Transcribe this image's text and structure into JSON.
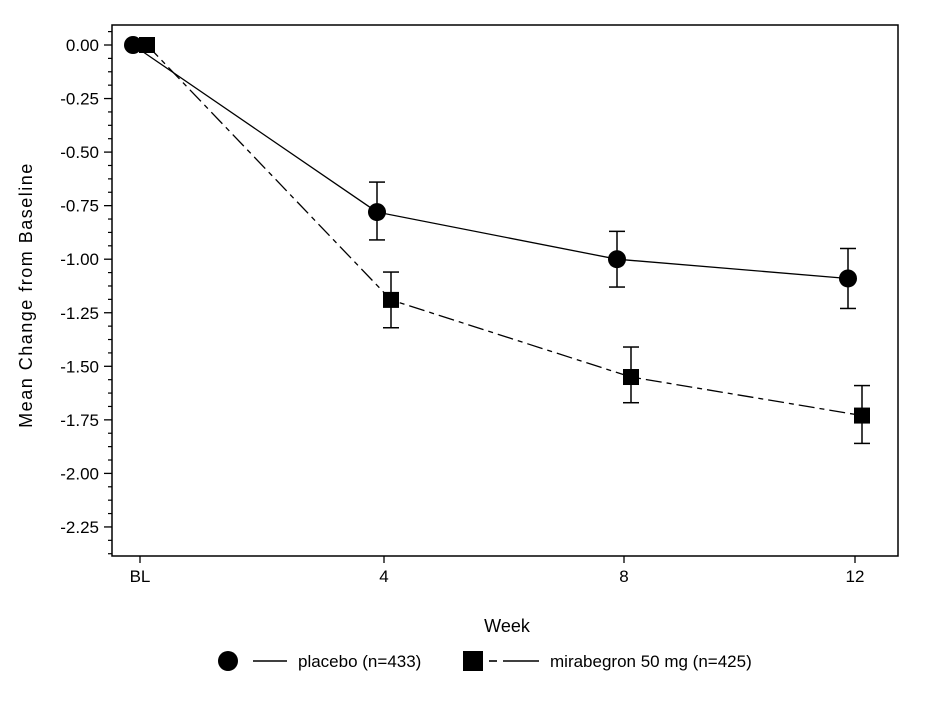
{
  "figure": {
    "background": "#ffffff",
    "ink": "#000000"
  },
  "chart_data": {
    "type": "line",
    "title": "",
    "xlabel": "Week",
    "ylabel": "Mean Change from Baseline",
    "categories": [
      "BL",
      "4",
      "8",
      "12"
    ],
    "x_values": [
      "BL",
      4,
      8,
      12
    ],
    "y_ticks": [
      0.0,
      -0.25,
      -0.5,
      -0.75,
      -1.0,
      -1.25,
      -1.5,
      -1.75,
      -2.0,
      -2.25
    ],
    "y_tick_labels": [
      "0.00",
      "-0.25",
      "-0.50",
      "-0.75",
      "-1.00",
      "-1.25",
      "-1.50",
      "-1.75",
      "-2.00",
      "-2.25"
    ],
    "ylim": [
      0.09,
      -2.39
    ],
    "minor_tick_step": 0.0625,
    "grid": false,
    "legend_position": "bottom",
    "series": [
      {
        "name": "placebo (n=433)",
        "marker": "circle",
        "line_style": "solid",
        "color": "#000000",
        "values": [
          0.0,
          -0.78,
          -1.0,
          -1.09
        ],
        "error_low": [
          null,
          -0.91,
          -1.13,
          -1.23
        ],
        "error_high": [
          null,
          -0.64,
          -0.87,
          -0.95
        ]
      },
      {
        "name": "mirabegron 50 mg (n=425)",
        "marker": "square",
        "line_style": "dash-dot",
        "color": "#000000",
        "values": [
          0.0,
          -1.19,
          -1.55,
          -1.73
        ],
        "error_low": [
          null,
          -1.32,
          -1.67,
          -1.86
        ],
        "error_high": [
          null,
          -1.06,
          -1.41,
          -1.59
        ]
      }
    ]
  }
}
